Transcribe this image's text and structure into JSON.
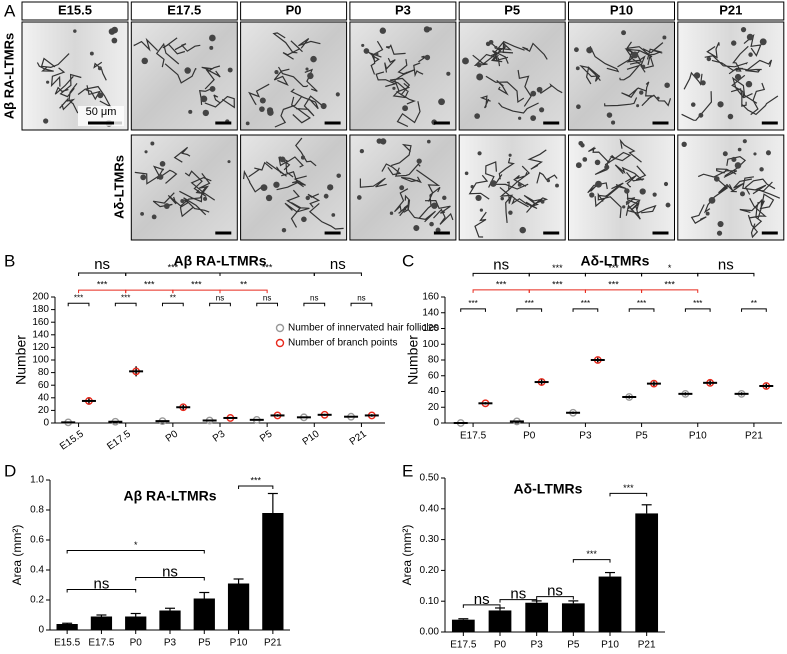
{
  "panel_labels": {
    "a": "A",
    "b": "B",
    "c": "C",
    "d": "D",
    "e": "E"
  },
  "panel_a": {
    "columns": [
      "E15.5",
      "E17.5",
      "P0",
      "P3",
      "P5",
      "P10",
      "P21"
    ],
    "rows": [
      "Aβ RA-LTMRs",
      "Aδ-LTMRs"
    ],
    "scale_bar": "50 μm"
  },
  "chart_data": [
    {
      "type": "strip",
      "title": "Aβ RA-LTMRs",
      "y_label": "Number",
      "categories": [
        "E15.5",
        "E17.5",
        "P0",
        "P3",
        "P5",
        "P10",
        "P21"
      ],
      "series": [
        {
          "name": "Number of innervated hair follicles",
          "color": "#999999",
          "values": [
            1,
            2,
            3,
            4,
            5,
            9,
            10
          ],
          "errors": [
            0.5,
            0.5,
            1,
            0.5,
            1,
            1,
            1
          ]
        },
        {
          "name": "Number of branch points",
          "color": "#e8291c",
          "values": [
            35,
            82,
            25,
            8,
            12,
            13,
            12
          ],
          "errors": [
            6,
            8,
            4,
            1,
            2,
            1.5,
            2
          ]
        }
      ],
      "ylim": [
        0,
        200
      ],
      "yticks": [
        0,
        20,
        40,
        60,
        80,
        100,
        120,
        140,
        160,
        180,
        200
      ],
      "annotations": [
        {
          "text": "ns",
          "color": "#000000"
        },
        {
          "text": "***",
          "color": "#000000"
        },
        {
          "text": "***",
          "color": "#000000"
        },
        {
          "text": "ns",
          "color": "#000000"
        },
        {
          "text": "***",
          "color": "#e8291c"
        },
        {
          "text": "***",
          "color": "#e8291c"
        },
        {
          "text": "***",
          "color": "#e8291c"
        },
        {
          "text": "**",
          "color": "#e8291c"
        },
        {
          "text": "***",
          "color": "#000000"
        },
        {
          "text": "***",
          "color": "#000000"
        },
        {
          "text": "**",
          "color": "#000000"
        },
        {
          "text": "ns",
          "color": "#000000"
        },
        {
          "text": "ns",
          "color": "#000000"
        },
        {
          "text": "ns",
          "color": "#000000"
        },
        {
          "text": "ns",
          "color": "#000000"
        }
      ]
    },
    {
      "type": "strip",
      "title": "Aδ-LTMRs",
      "y_label": "Number",
      "categories": [
        "E17.5",
        "P0",
        "P3",
        "P5",
        "P10",
        "P21"
      ],
      "series": [
        {
          "name": "Number of innervated hair follicles",
          "color": "#999999",
          "values": [
            0,
            2,
            13,
            33,
            37,
            37
          ],
          "errors": [
            0.3,
            0.5,
            1.5,
            2,
            2,
            2
          ]
        },
        {
          "name": "Number of branch points",
          "color": "#e8291c",
          "values": [
            25,
            52,
            80,
            50,
            51,
            47
          ],
          "errors": [
            1.5,
            4,
            3,
            3,
            3,
            3
          ]
        }
      ],
      "ylim": [
        0,
        160
      ],
      "yticks": [
        0,
        20,
        40,
        60,
        80,
        100,
        120,
        140,
        160
      ],
      "annotations": [
        {
          "text": "ns",
          "color": "#000000"
        },
        {
          "text": "***",
          "color": "#000000"
        },
        {
          "text": "***",
          "color": "#000000"
        },
        {
          "text": "*",
          "color": "#000000"
        },
        {
          "text": "ns",
          "color": "#000000"
        },
        {
          "text": "***",
          "color": "#e8291c"
        },
        {
          "text": "***",
          "color": "#e8291c"
        },
        {
          "text": "***",
          "color": "#e8291c"
        },
        {
          "text": "***",
          "color": "#e8291c"
        },
        {
          "text": "***",
          "color": "#000000"
        },
        {
          "text": "***",
          "color": "#000000"
        },
        {
          "text": "***",
          "color": "#000000"
        },
        {
          "text": "***",
          "color": "#000000"
        },
        {
          "text": "***",
          "color": "#000000"
        },
        {
          "text": "**",
          "color": "#000000"
        }
      ]
    },
    {
      "type": "bar",
      "title": "Aβ RA-LTMRs",
      "y_label": "Area (mm²)",
      "categories": [
        "E15.5",
        "E17.5",
        "P0",
        "P3",
        "P5",
        "P10",
        "P21"
      ],
      "values": [
        0.04,
        0.09,
        0.09,
        0.13,
        0.21,
        0.31,
        0.78
      ],
      "errors": [
        0.005,
        0.01,
        0.02,
        0.015,
        0.04,
        0.03,
        0.13
      ],
      "color": "#000000",
      "ylim": [
        0,
        1
      ],
      "yticks": [
        0,
        0.2,
        0.4,
        0.6,
        0.8,
        {
          "value": 1,
          "label": "1.0"
        }
      ],
      "annotations": [
        {
          "text": "ns",
          "color": "#000000"
        },
        {
          "text": "ns",
          "color": "#000000"
        },
        {
          "text": "*",
          "color": "#000000"
        },
        {
          "text": "***",
          "color": "#000000"
        }
      ]
    },
    {
      "type": "bar",
      "title": "Aδ-LTMRs",
      "y_label": "Area (mm²)",
      "categories": [
        "E17.5",
        "P0",
        "P3",
        "P5",
        "P10",
        "P21"
      ],
      "values": [
        0.04,
        0.07,
        0.095,
        0.093,
        0.18,
        0.385
      ],
      "errors": [
        0.003,
        0.008,
        0.006,
        0.008,
        0.013,
        0.028
      ],
      "color": "#000000",
      "ylim": [
        0,
        0.5
      ],
      "yticks": [
        {
          "value": 0,
          "label": "0.00"
        },
        {
          "value": 0.1,
          "label": "0.10"
        },
        {
          "value": 0.2,
          "label": "0.20"
        },
        {
          "value": 0.3,
          "label": "0.30"
        },
        {
          "value": 0.4,
          "label": "0.40"
        },
        {
          "value": 0.5,
          "label": "0.50"
        }
      ],
      "annotations": [
        {
          "text": "ns",
          "color": "#000000"
        },
        {
          "text": "ns",
          "color": "#000000"
        },
        {
          "text": "ns",
          "color": "#000000"
        },
        {
          "text": "***",
          "color": "#000000"
        },
        {
          "text": "***",
          "color": "#000000"
        }
      ]
    }
  ]
}
